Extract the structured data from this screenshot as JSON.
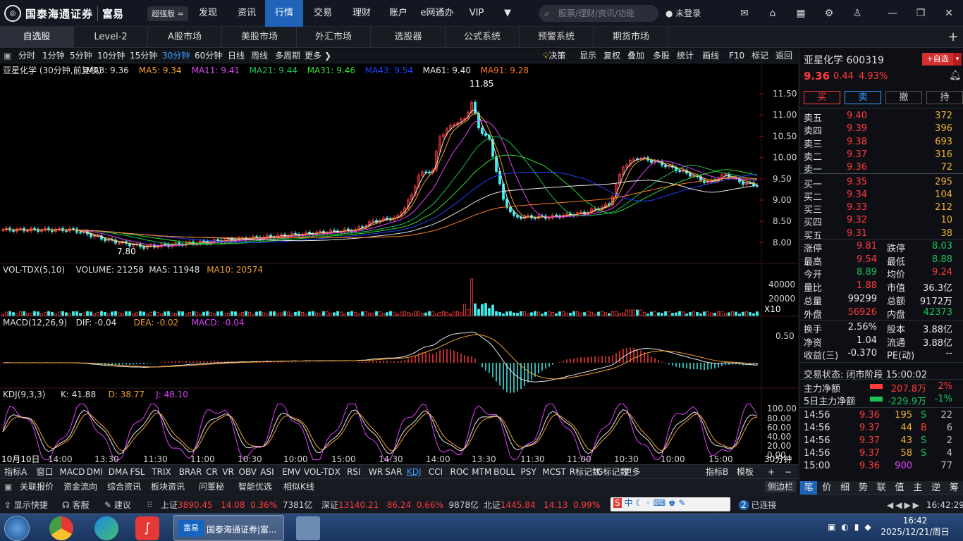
{
  "app": {
    "logo_text": "国泰海通证券",
    "logo_sub": "富易",
    "edition": "超强版",
    "search_placeholder": "股票/理财/资讯/功能",
    "login": "未登录"
  },
  "main_nav": [
    "发现",
    "资讯",
    "行情",
    "交易",
    "理财",
    "账户",
    "e网通办",
    "VIP"
  ],
  "sub_tabs": [
    "自选股",
    "Level-2",
    "A股市场",
    "美股市场",
    "外汇市场",
    "选股器",
    "公式系统",
    "预警系统",
    "期货市场"
  ],
  "periods": [
    "分时",
    "1分钟",
    "5分钟",
    "10分钟",
    "15分钟",
    "30分钟",
    "60分钟",
    "日线",
    "周线",
    "多周期",
    "更多"
  ],
  "period_selected": "30分钟",
  "period_right": [
    "决策",
    "显示",
    "复权",
    "叠加",
    "多股",
    "统计",
    "画线",
    "F10",
    "标记",
    "返回"
  ],
  "main_legend": {
    "title": "亚星化学 (30分钟,前复权)",
    "ma3": "MA3: 9.36",
    "ma5": "MA5: 9.34",
    "ma11": "MA11: 9.41",
    "ma21": "MA21: 9.44",
    "ma31": "MA31: 9.46",
    "ma43": "MA43: 9.54",
    "ma61": "MA61: 9.40",
    "ma91": "MA91: 9.28"
  },
  "price_axis": [
    "11.50",
    "11.00",
    "10.50",
    "10.00",
    "9.50",
    "9.00",
    "8.50",
    "8.00"
  ],
  "high_label": "11.85",
  "low_label": "7.80",
  "vol_legend": {
    "name": "VOL-TDX(5,10)",
    "volume": "VOLUME: 21258",
    "ma5": "MA5: 11948",
    "ma10": "MA10: 20574"
  },
  "vol_axis": [
    "40000",
    "20000"
  ],
  "vol_unit": "X10",
  "macd_legend": {
    "name": "MACD(12,26,9)",
    "dif": "DIF: -0.04",
    "dea": "DEA: -0.02",
    "macd": "MACD: -0.04"
  },
  "macd_axis": [
    "0.50"
  ],
  "kdj_legend": {
    "name": "KDJ(9,3,3)",
    "k": "K: 41.88",
    "d": "D: 38.77",
    "j": "J: 48.10"
  },
  "kdj_axis": [
    "100.00",
    "80.00",
    "60.00",
    "40.00",
    "20.00",
    "0.00"
  ],
  "time_axis": [
    "10月10日",
    "14:00",
    "13:30",
    "11:30",
    "11:00",
    "10:30",
    "10:00",
    "15:00",
    "14:30",
    "14:00",
    "13:30",
    "11:30",
    "11:00",
    "10:30",
    "10:00",
    "15:00"
  ],
  "time_axis_unit": "30分钟",
  "indicators": [
    "指标A",
    "窗口",
    "MACD",
    "DMI",
    "DMA",
    "FSL",
    "TRIX",
    "BRAR",
    "CR",
    "VR",
    "OBV",
    "ASI",
    "EMV",
    "VOL-TDX",
    "RSI",
    "WR",
    "SAR",
    "KDJ",
    "CCI",
    "ROC",
    "MTM",
    "BOLL",
    "PSY",
    "MCST",
    "R标记数",
    "G标记数",
    "更多"
  ],
  "indicator_selected": "KDJ",
  "indicator_right": [
    "指标B",
    "模板"
  ],
  "bottom_tools": [
    "关联报价",
    "资金流向",
    "综合资讯",
    "板块资讯",
    "问董秘",
    "智能优选",
    "相似K线"
  ],
  "side_button": "侧边栏",
  "stock": {
    "name": "亚星化学",
    "code": "600319",
    "add_btn": "+自选",
    "price": "9.36",
    "change": "0.44",
    "pct": "4.93%"
  },
  "trade_buttons": [
    "买",
    "卖",
    "撤",
    "持"
  ],
  "asks": [
    {
      "label": "卖五",
      "price": "9.40",
      "vol": "372"
    },
    {
      "label": "卖四",
      "price": "9.39",
      "vol": "396"
    },
    {
      "label": "卖三",
      "price": "9.38",
      "vol": "693"
    },
    {
      "label": "卖二",
      "price": "9.37",
      "vol": "316"
    },
    {
      "label": "卖一",
      "price": "9.36",
      "vol": "72"
    }
  ],
  "bids": [
    {
      "label": "买一",
      "price": "9.35",
      "vol": "295"
    },
    {
      "label": "买二",
      "price": "9.34",
      "vol": "104"
    },
    {
      "label": "买三",
      "price": "9.33",
      "vol": "212"
    },
    {
      "label": "买四",
      "price": "9.32",
      "vol": "10"
    },
    {
      "label": "买五",
      "price": "9.31",
      "vol": "38"
    }
  ],
  "stats": [
    {
      "l1": "涨停",
      "v1": "9.81",
      "c1": "red",
      "l2": "跌停",
      "v2": "8.03",
      "c2": "green"
    },
    {
      "l1": "最高",
      "v1": "9.54",
      "c1": "red",
      "l2": "最低",
      "v2": "8.88",
      "c2": "green"
    },
    {
      "l1": "今开",
      "v1": "8.89",
      "c1": "green",
      "l2": "均价",
      "v2": "9.24",
      "c2": "red"
    },
    {
      "l1": "量比",
      "v1": "1.88",
      "c1": "red",
      "l2": "市值",
      "v2": "36.3亿",
      "c2": "white"
    },
    {
      "l1": "总量",
      "v1": "99299",
      "c1": "white",
      "l2": "总额",
      "v2": "9172万",
      "c2": "white"
    },
    {
      "l1": "外盘",
      "v1": "56926",
      "c1": "red",
      "l2": "内盘",
      "v2": "42373",
      "c2": "green"
    }
  ],
  "stats2": [
    {
      "l1": "换手",
      "v1": "2.56%",
      "l2": "股本",
      "v2": "3.88亿"
    },
    {
      "l1": "净资",
      "v1": "1.04",
      "l2": "流通",
      "v2": "3.88亿"
    },
    {
      "l1": "收益(三)",
      "v1": "-0.370",
      "l2": "PE(动)",
      "v2": "--"
    }
  ],
  "trade_state": "交易状态: 闭市阶段 15:00:02",
  "fund_flow": [
    {
      "label": "主力净额",
      "value": "207.8万",
      "pct": "2%",
      "color": "red"
    },
    {
      "label": "5日主力净额",
      "value": "-229.9万",
      "pct": "-1%",
      "color": "green"
    }
  ],
  "ticks": [
    {
      "t": "14:56",
      "p": "9.36",
      "v": "195",
      "s": "S",
      "n": "22"
    },
    {
      "t": "14:56",
      "p": "9.37",
      "v": "44",
      "s": "B",
      "n": "6"
    },
    {
      "t": "14:56",
      "p": "9.37",
      "v": "43",
      "s": "S",
      "n": "2"
    },
    {
      "t": "14:56",
      "p": "9.37",
      "v": "58",
      "s": "S",
      "n": "4"
    },
    {
      "t": "15:00",
      "p": "9.36",
      "v": "900",
      "s": "",
      "n": "77"
    }
  ],
  "rp_tabs": [
    "笔",
    "价",
    "细",
    "势",
    "联",
    "值",
    "主",
    "逆",
    "筹"
  ],
  "status": {
    "show_shortcut": "显示快捷",
    "service": "客服",
    "suggest": "建议",
    "sh_label": "上证",
    "sh": "3890.45",
    "sh_chg": "14.08",
    "sh_pct": "0.36%",
    "sh_amt": "7381亿",
    "sz_label": "深证",
    "sz": "13140.21",
    "sz_chg": "86.24",
    "sz_pct": "0.66%",
    "sz_amt": "9878亿",
    "bz_label": "北证",
    "bz": "1445.84",
    "bz_chg": "14.13",
    "bz_pct": "0.99%",
    "ime": "中",
    "conn_num": "2",
    "conn": "已连接",
    "time": "16:42:29"
  },
  "taskbar": {
    "app_title": "国泰海通证券|富...",
    "app_icon": "富易",
    "time": "16:42",
    "date": "2025/12/21/周日"
  }
}
